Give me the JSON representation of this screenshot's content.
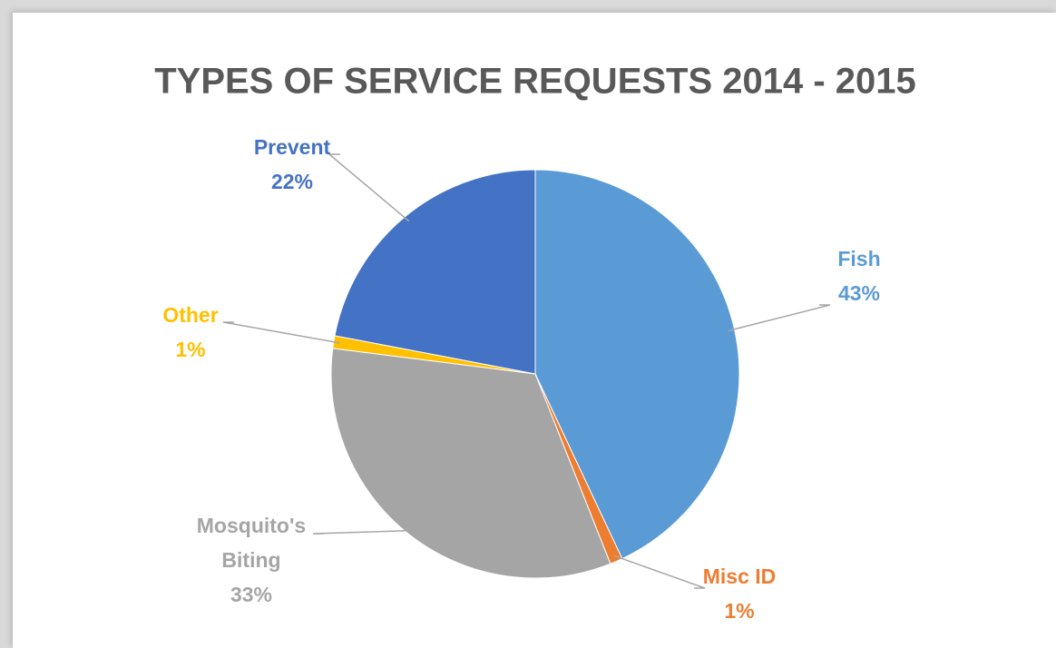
{
  "chart_data": {
    "type": "pie",
    "title": "TYPES OF SERVICE REQUESTS 2014 - 2015",
    "categories": [
      "Fish",
      "Misc ID",
      "Mosquito's Biting",
      "Other",
      "Prevent"
    ],
    "values": [
      43,
      1,
      33,
      1,
      22
    ],
    "value_labels": [
      "43%",
      "1%",
      "33%",
      "1%",
      "22%"
    ],
    "colors": [
      "#5b9bd5",
      "#ed7d31",
      "#a5a5a5",
      "#ffc000",
      "#4472c4"
    ]
  }
}
